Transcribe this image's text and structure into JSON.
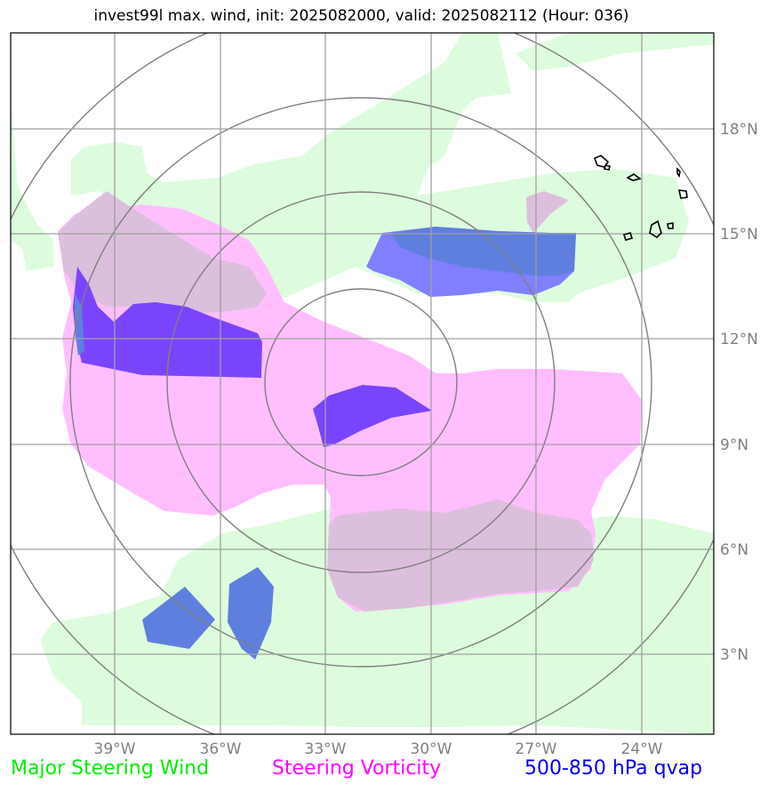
{
  "title": "invest99l max. wind, init: 2025082000, valid: 2025082112 (Hour: 036)",
  "map": {
    "lon_ticks": [
      "39°W",
      "36°W",
      "33°W",
      "30°W",
      "27°W",
      "24°W"
    ],
    "lat_ticks": [
      "18°N",
      "15°N",
      "12°N",
      "9°N",
      "6°N",
      "3°N"
    ],
    "range_rings": 4,
    "colors": {
      "steering_wind": "#ddfcdd",
      "steering_vorticity": "#ffbfff",
      "overlap": "#dcbfdc",
      "qvap_light": "#7f7fff",
      "qvap_medium": "#5f7fdf",
      "qvap_dark": "#7a44ff",
      "grid": "#a0a0a0",
      "rings": "#808080"
    }
  },
  "legend": [
    {
      "label": "Major Steering Wind",
      "color": "#00ee00"
    },
    {
      "label": "Steering Vorticity",
      "color": "#ff00ff"
    },
    {
      "label": "500-850 hPa qvap",
      "color": "#0000ee"
    }
  ]
}
